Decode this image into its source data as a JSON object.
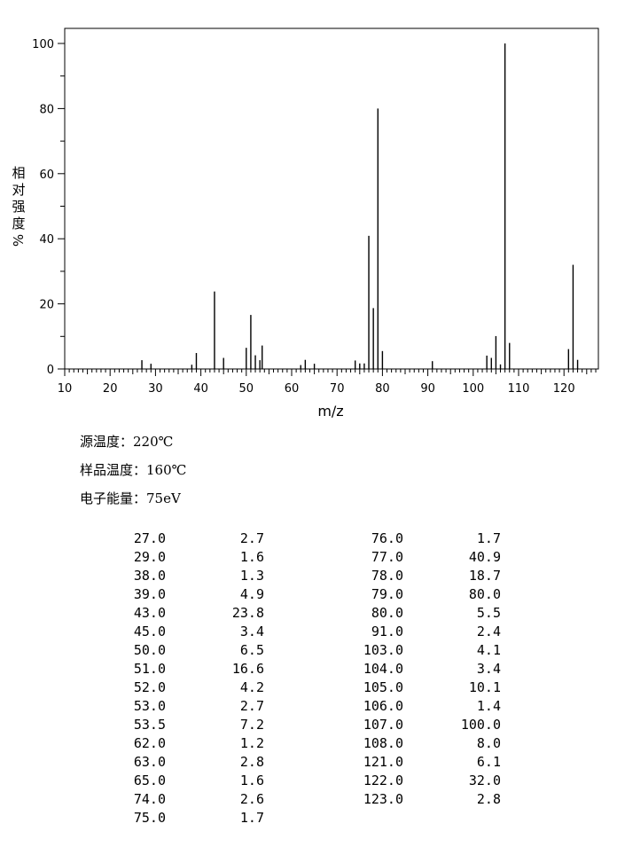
{
  "chart_data": {
    "type": "bar",
    "xlabel": "m/z",
    "ylabel_chars": [
      "相",
      "对",
      "强",
      "度",
      "%"
    ],
    "xlim": [
      10,
      127
    ],
    "ylim": [
      0,
      105
    ],
    "x_ticks": [
      10,
      20,
      30,
      40,
      50,
      60,
      70,
      80,
      90,
      100,
      110,
      120
    ],
    "y_ticks": [
      0,
      20,
      40,
      60,
      80,
      100
    ],
    "peaks": [
      {
        "mz": 27.0,
        "intensity": 2.7
      },
      {
        "mz": 29.0,
        "intensity": 1.6
      },
      {
        "mz": 38.0,
        "intensity": 1.3
      },
      {
        "mz": 39.0,
        "intensity": 4.9
      },
      {
        "mz": 43.0,
        "intensity": 23.8
      },
      {
        "mz": 45.0,
        "intensity": 3.4
      },
      {
        "mz": 50.0,
        "intensity": 6.5
      },
      {
        "mz": 51.0,
        "intensity": 16.6
      },
      {
        "mz": 52.0,
        "intensity": 4.2
      },
      {
        "mz": 53.0,
        "intensity": 2.7
      },
      {
        "mz": 53.5,
        "intensity": 7.2
      },
      {
        "mz": 62.0,
        "intensity": 1.2
      },
      {
        "mz": 63.0,
        "intensity": 2.8
      },
      {
        "mz": 65.0,
        "intensity": 1.6
      },
      {
        "mz": 74.0,
        "intensity": 2.6
      },
      {
        "mz": 75.0,
        "intensity": 1.7
      },
      {
        "mz": 76.0,
        "intensity": 1.7
      },
      {
        "mz": 77.0,
        "intensity": 40.9
      },
      {
        "mz": 78.0,
        "intensity": 18.7
      },
      {
        "mz": 79.0,
        "intensity": 80.0
      },
      {
        "mz": 80.0,
        "intensity": 5.5
      },
      {
        "mz": 91.0,
        "intensity": 2.4
      },
      {
        "mz": 103.0,
        "intensity": 4.1
      },
      {
        "mz": 104.0,
        "intensity": 3.4
      },
      {
        "mz": 105.0,
        "intensity": 10.1
      },
      {
        "mz": 106.0,
        "intensity": 1.4
      },
      {
        "mz": 107.0,
        "intensity": 100.0
      },
      {
        "mz": 108.0,
        "intensity": 8.0
      },
      {
        "mz": 121.0,
        "intensity": 6.1
      },
      {
        "mz": 122.0,
        "intensity": 32.0
      },
      {
        "mz": 123.0,
        "intensity": 2.8
      }
    ]
  },
  "conditions": {
    "source_temp": "源温度：220℃",
    "sample_temp": "样品温度：160℃",
    "electron_energy": "电子能量：75eV"
  },
  "table": {
    "left": [
      [
        "27.0",
        "2.7"
      ],
      [
        "29.0",
        "1.6"
      ],
      [
        "38.0",
        "1.3"
      ],
      [
        "39.0",
        "4.9"
      ],
      [
        "43.0",
        "23.8"
      ],
      [
        "45.0",
        "3.4"
      ],
      [
        "50.0",
        "6.5"
      ],
      [
        "51.0",
        "16.6"
      ],
      [
        "52.0",
        "4.2"
      ],
      [
        "53.0",
        "2.7"
      ],
      [
        "53.5",
        "7.2"
      ],
      [
        "62.0",
        "1.2"
      ],
      [
        "63.0",
        "2.8"
      ],
      [
        "65.0",
        "1.6"
      ],
      [
        "74.0",
        "2.6"
      ],
      [
        "75.0",
        "1.7"
      ]
    ],
    "right": [
      [
        "76.0",
        "1.7"
      ],
      [
        "77.0",
        "40.9"
      ],
      [
        "78.0",
        "18.7"
      ],
      [
        "79.0",
        "80.0"
      ],
      [
        "80.0",
        "5.5"
      ],
      [
        "91.0",
        "2.4"
      ],
      [
        "103.0",
        "4.1"
      ],
      [
        "104.0",
        "3.4"
      ],
      [
        "105.0",
        "10.1"
      ],
      [
        "106.0",
        "1.4"
      ],
      [
        "107.0",
        "100.0"
      ],
      [
        "108.0",
        "8.0"
      ],
      [
        "121.0",
        "6.1"
      ],
      [
        "122.0",
        "32.0"
      ],
      [
        "123.0",
        "2.8"
      ]
    ]
  }
}
